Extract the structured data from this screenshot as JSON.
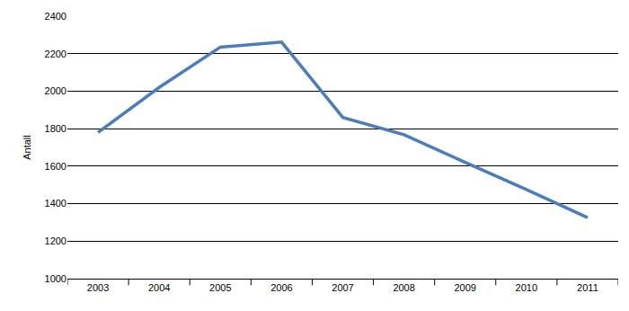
{
  "chart_data": {
    "type": "line",
    "ylabel": "Antall",
    "categories": [
      "2003",
      "2004",
      "2005",
      "2006",
      "2007",
      "2008",
      "2009",
      "2010",
      "2011"
    ],
    "values": [
      1780,
      2020,
      2235,
      2262,
      1860,
      1768,
      1620,
      1475,
      1325
    ],
    "color": "#4a7ebb",
    "ylim": [
      1000,
      2400
    ],
    "yticks": [
      1000,
      1200,
      1400,
      1600,
      1800,
      2000,
      2200,
      2400
    ],
    "grid": true
  }
}
